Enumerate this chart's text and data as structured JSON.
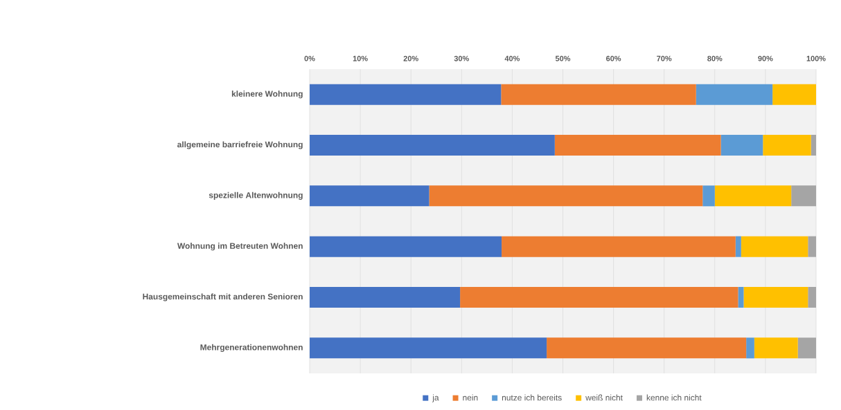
{
  "chart_data": {
    "type": "bar",
    "orientation": "horizontal",
    "stacked": true,
    "categories": [
      "kleinere Wohnung",
      "allgemeine barriefreie Wohnung",
      "spezielle Altenwohnung",
      "Wohnung im Betreuten Wohnen",
      "Hausgemeinschaft mit anderen Senioren",
      "Mehrgenerationenwohnen"
    ],
    "series": [
      {
        "name": "ja",
        "color": "#4472c4",
        "values": [
          37.8,
          48.4,
          23.6,
          37.9,
          29.7,
          46.8
        ]
      },
      {
        "name": "nein",
        "color": "#ed7d31",
        "values": [
          38.5,
          32.8,
          54.0,
          46.2,
          54.9,
          39.4
        ]
      },
      {
        "name": "nutze ich bereits",
        "color": "#5b9bd5",
        "values": [
          15.1,
          8.3,
          2.4,
          1.1,
          1.1,
          1.6
        ]
      },
      {
        "name": "weiß nicht",
        "color": "#ffc000",
        "values": [
          8.6,
          9.5,
          15.1,
          13.2,
          12.7,
          8.6
        ]
      },
      {
        "name": "kenne ich nicht",
        "color": "#a5a5a5",
        "values": [
          0,
          1.0,
          4.9,
          1.6,
          1.6,
          3.6
        ]
      }
    ],
    "xlim": [
      0,
      100
    ],
    "xticks": [
      {
        "value": 0,
        "label": "0%"
      },
      {
        "value": 10,
        "label": "10%"
      },
      {
        "value": 20,
        "label": "20%"
      },
      {
        "value": 30,
        "label": "30%"
      },
      {
        "value": 40,
        "label": "40%"
      },
      {
        "value": 50,
        "label": "50%"
      },
      {
        "value": 60,
        "label": "60%"
      },
      {
        "value": 70,
        "label": "70%"
      },
      {
        "value": 80,
        "label": "80%"
      },
      {
        "value": 90,
        "label": "90%"
      },
      {
        "value": 100,
        "label": "100%"
      }
    ],
    "grid": "x",
    "legend": "bottom"
  }
}
